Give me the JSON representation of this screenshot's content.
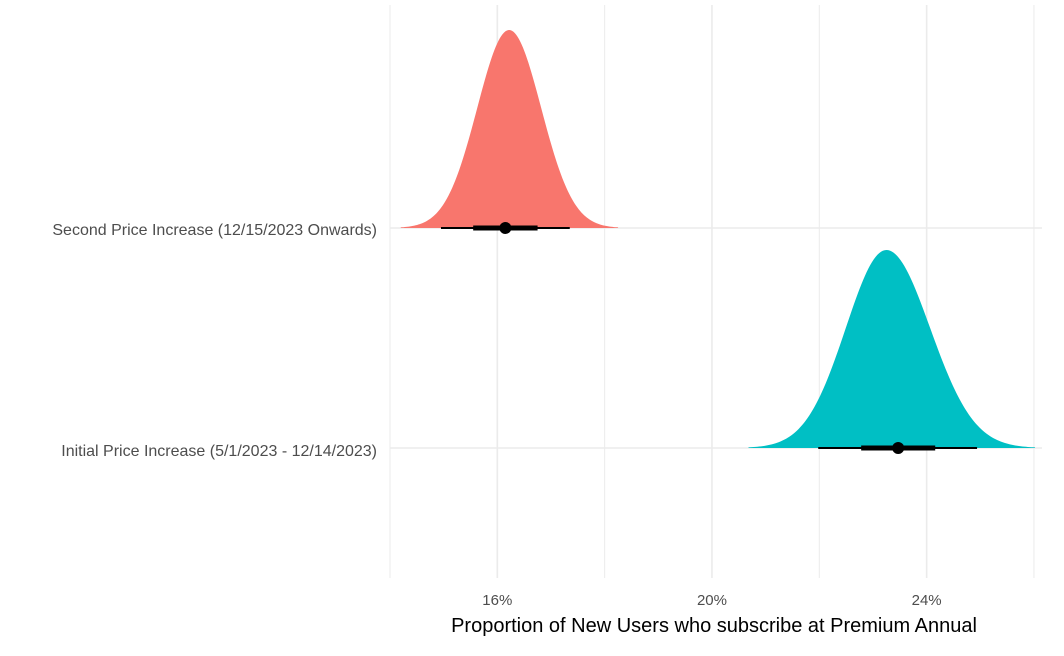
{
  "chart_data": {
    "type": "halfeye",
    "xlabel": "Proportion of New Users who subscribe at Premium Annual",
    "ylabel": "",
    "x_tick_values": [
      0.16,
      0.2,
      0.24
    ],
    "x_tick_labels": [
      "16%",
      "20%",
      "24%"
    ],
    "xlim": [
      0.14,
      0.2615
    ],
    "grid": true,
    "categories": [
      "Second Price Increase (12/15/2023 Onwards)",
      "Initial Price Increase (5/1/2023 - 12/14/2023)"
    ],
    "series": [
      {
        "category": "Second Price Increase (12/15/2023 Onwards)",
        "color": "#F8766D",
        "median": 0.1615,
        "interval_66": [
          0.1555,
          0.1675
        ],
        "interval_95": [
          0.1495,
          0.1735
        ],
        "density_range": [
          0.142,
          0.1825
        ],
        "density_peak": 0.1622
      },
      {
        "category": "Initial Price Increase (5/1/2023 - 12/14/2023)",
        "color": "#00BFC4",
        "median": 0.2347,
        "interval_66": [
          0.2278,
          0.2416
        ],
        "interval_95": [
          0.2198,
          0.2494
        ],
        "density_range": [
          0.2068,
          0.2602
        ],
        "density_peak": 0.2325
      }
    ]
  }
}
